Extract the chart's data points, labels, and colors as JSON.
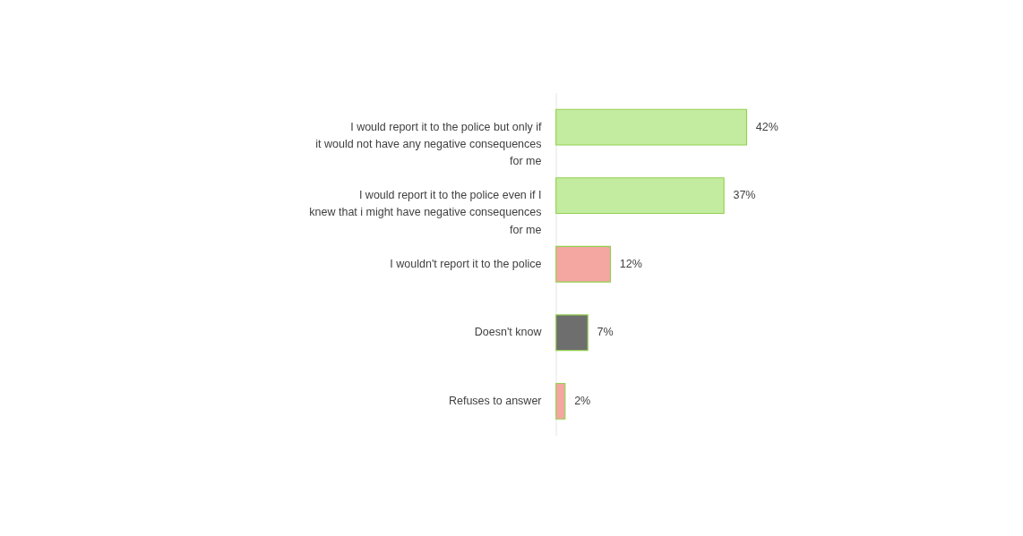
{
  "chart_data": {
    "type": "bar",
    "orientation": "horizontal",
    "categories": [
      "I would report it to the police but only if it would not have any negative consequences for me",
      "I would report it to the police even if I knew that i might have negative consequences for me",
      "I wouldn't report it to the police",
      "Doesn't know",
      "Refuses to answer"
    ],
    "values": [
      42,
      37,
      12,
      7,
      2
    ],
    "colors": [
      "#c4eca0",
      "#c4eca0",
      "#f4a6a0",
      "#6e6e6e",
      "#f4a6a0"
    ],
    "value_labels": [
      "42%",
      "37%",
      "12%",
      "7%",
      "2%"
    ],
    "grid": false
  }
}
